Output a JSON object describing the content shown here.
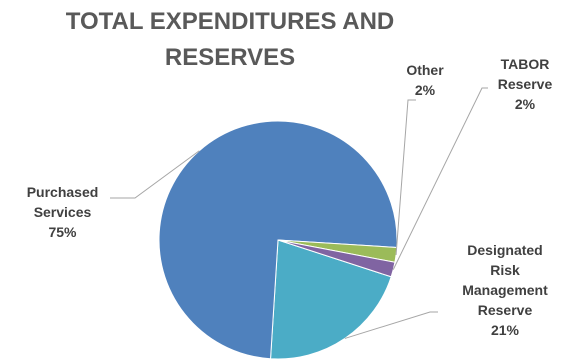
{
  "chart_data": {
    "type": "pie",
    "title_lines": [
      "TOTAL EXPENDITURES AND",
      "RESERVES"
    ],
    "slices": [
      {
        "label_lines": [
          "Designated",
          "Risk",
          "Management",
          "Reserve"
        ],
        "value": 21,
        "value_label": "21%",
        "color": "#4BACC6"
      },
      {
        "label_lines": [
          "Purchased",
          "Services"
        ],
        "value": 75,
        "value_label": "75%",
        "color": "#4F81BD"
      },
      {
        "label_lines": [
          "Other"
        ],
        "value": 2,
        "value_label": "2%",
        "color": "#9BBB59"
      },
      {
        "label_lines": [
          "TABOR",
          "Reserve"
        ],
        "value": 2,
        "value_label": "2%",
        "color": "#8064A2"
      }
    ]
  }
}
